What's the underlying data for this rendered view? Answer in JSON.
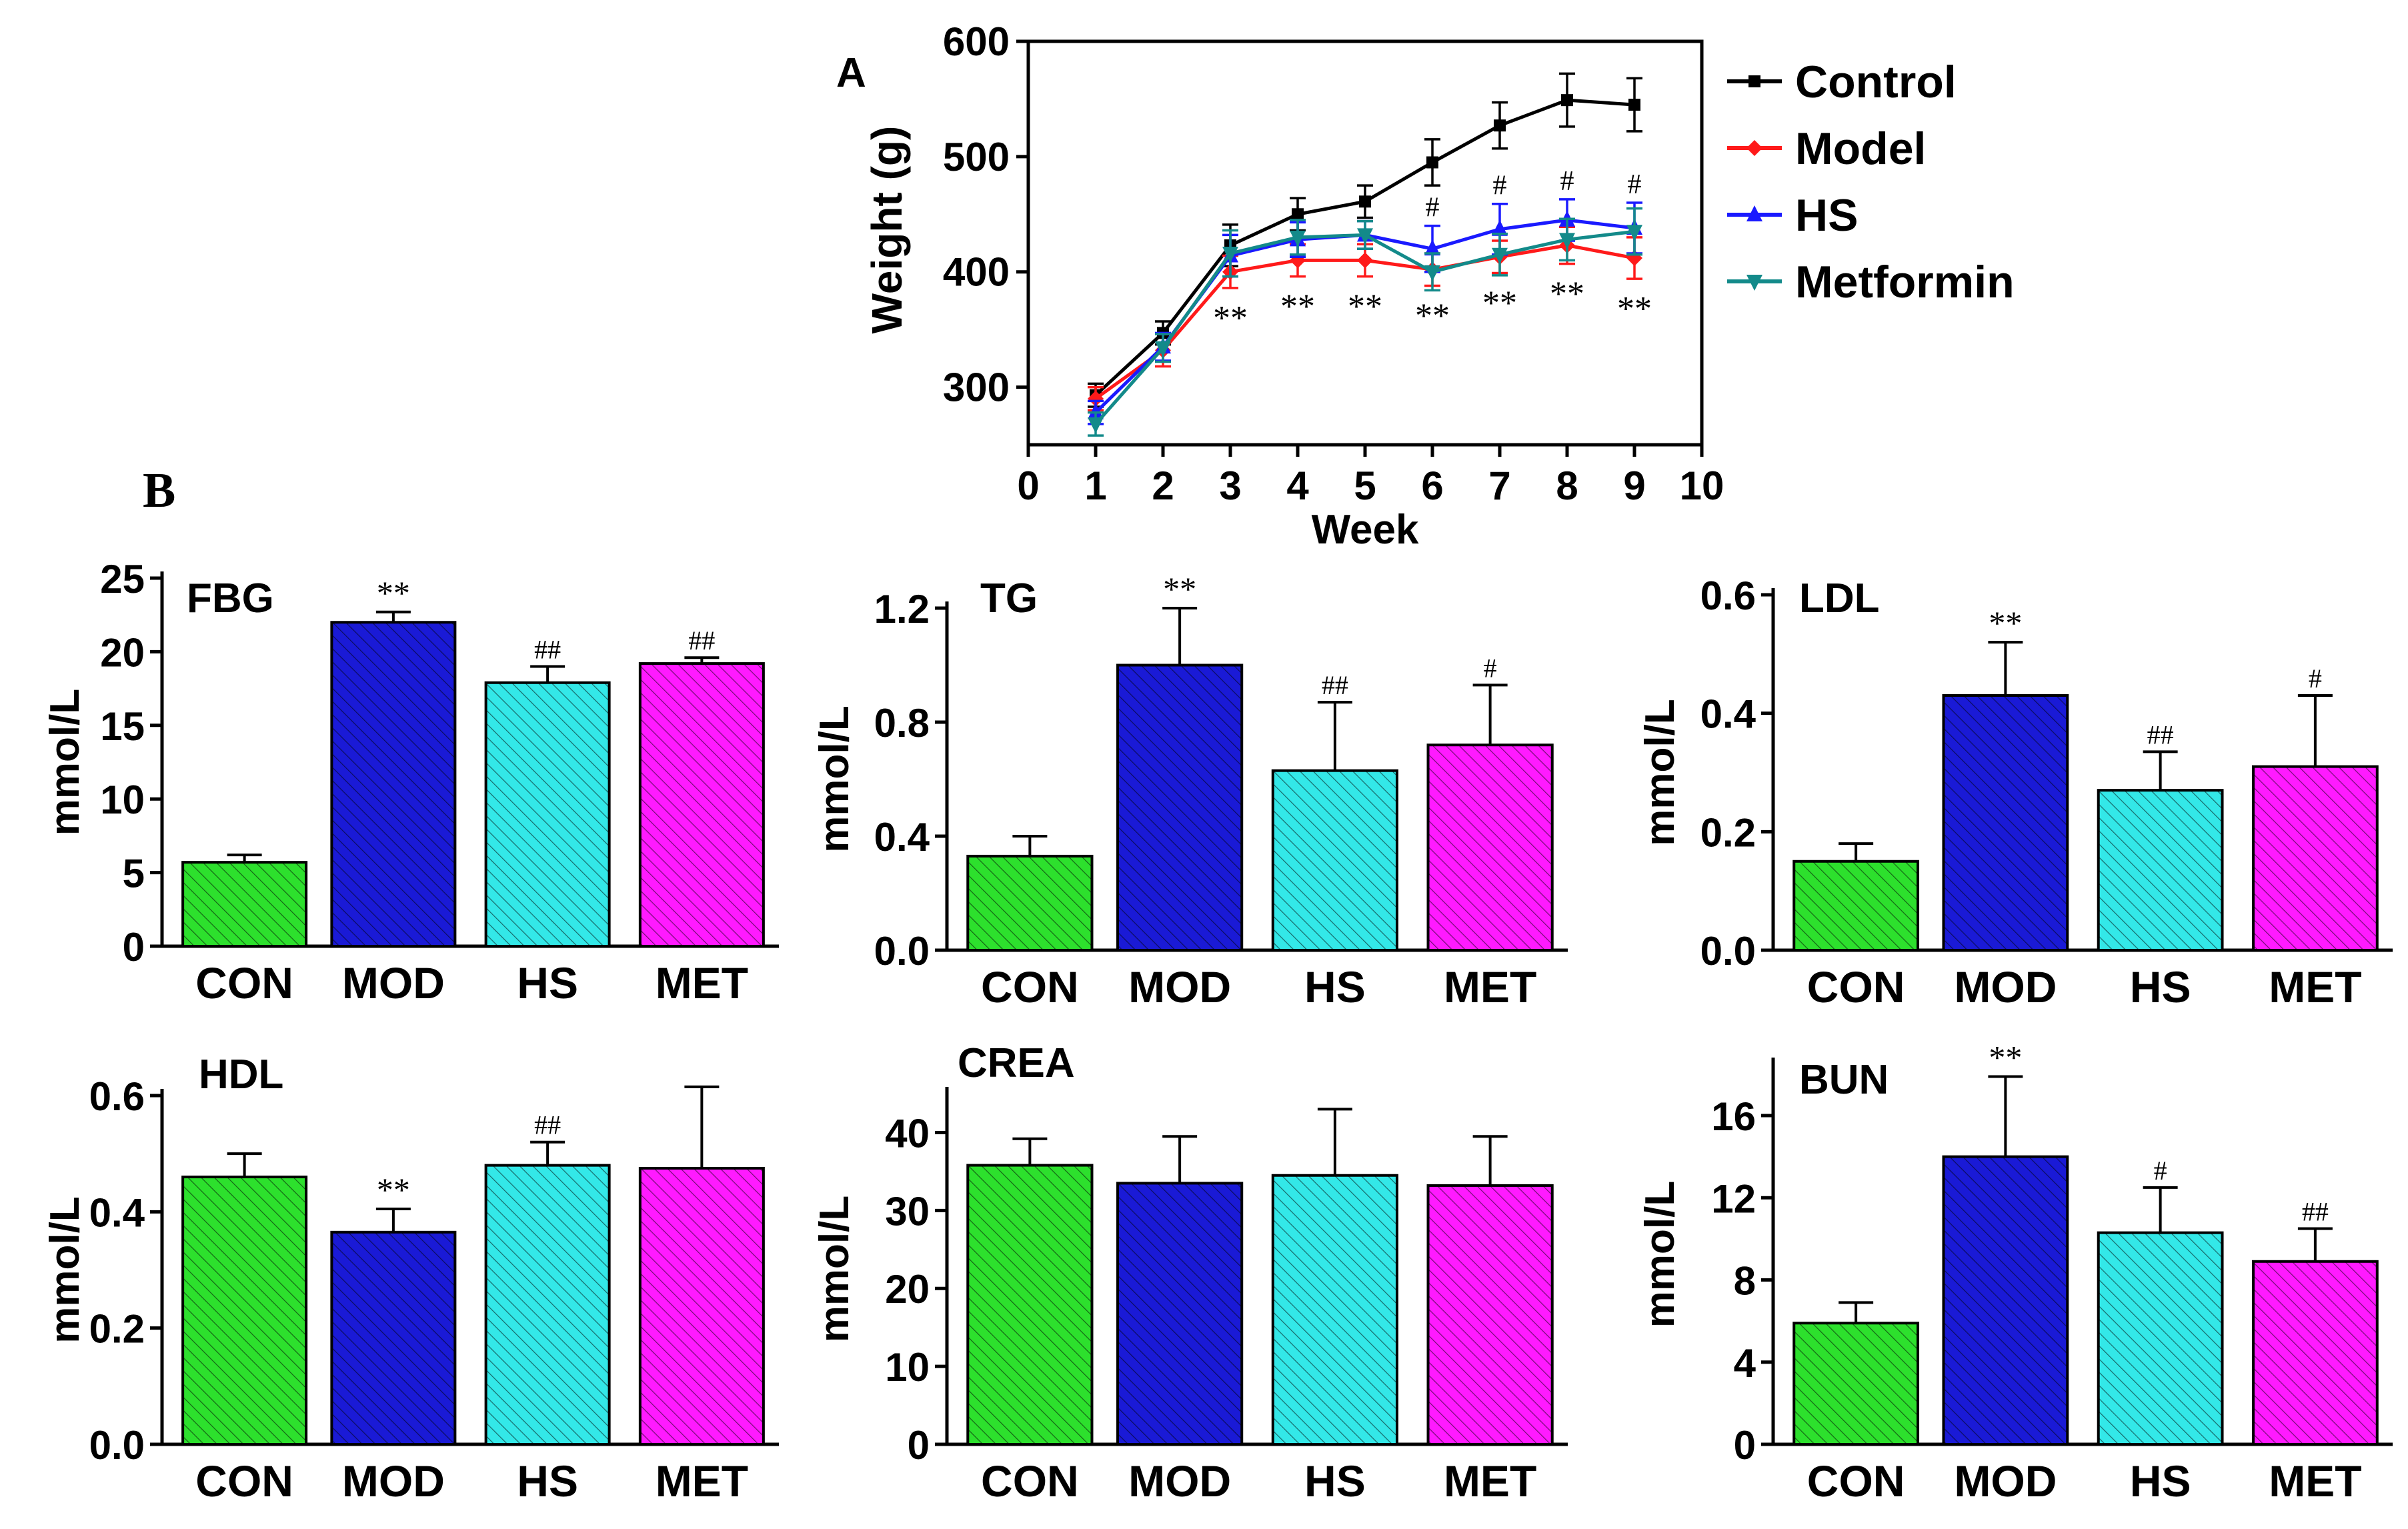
{
  "panel_labels": {
    "a": "A",
    "b": "B"
  },
  "chart_data": [
    {
      "id": "weight",
      "type": "line",
      "title": "",
      "xlabel": "Week",
      "ylabel": "Weight (g)",
      "xlim": [
        0,
        10
      ],
      "ylim": [
        250,
        600
      ],
      "x_ticks": [
        0,
        1,
        2,
        3,
        4,
        5,
        6,
        7,
        8,
        9,
        10
      ],
      "y_ticks": [
        300,
        400,
        500,
        600
      ],
      "x": [
        1,
        2,
        3,
        4,
        5,
        6,
        7,
        8,
        9
      ],
      "series": [
        {
          "name": "Control",
          "color": "#000000",
          "marker": "square",
          "values": [
            293,
            347,
            423,
            450,
            461,
            495,
            527,
            549,
            545
          ],
          "errors": [
            10,
            10,
            18,
            14,
            14,
            20,
            20,
            23,
            23
          ]
        },
        {
          "name": "Model",
          "color": "#ff1a1a",
          "marker": "diamond",
          "values": [
            290,
            332,
            400,
            410,
            410,
            402,
            413,
            423,
            412
          ],
          "errors": [
            10,
            14,
            14,
            14,
            14,
            14,
            14,
            16,
            18
          ]
        },
        {
          "name": "HS",
          "color": "#1a1aff",
          "marker": "triangle-up",
          "values": [
            278,
            335,
            414,
            428,
            432,
            420,
            437,
            445,
            438
          ],
          "errors": [
            10,
            12,
            18,
            15,
            12,
            20,
            22,
            18,
            22
          ]
        },
        {
          "name": "Metformin",
          "color": "#138a8a",
          "marker": "triangle-down",
          "values": [
            268,
            334,
            416,
            430,
            432,
            400,
            415,
            428,
            435
          ],
          "errors": [
            10,
            12,
            20,
            15,
            12,
            16,
            18,
            18,
            20
          ]
        }
      ],
      "annotations": {
        "double_star": {
          "text": "**",
          "weeks": [
            3,
            4,
            5,
            6,
            7,
            8,
            9
          ]
        },
        "hash": {
          "text": "#",
          "weeks": [
            6,
            7,
            8,
            9
          ]
        }
      },
      "legend_position": "right"
    },
    {
      "id": "fbg",
      "type": "bar",
      "title": "FBG",
      "ylabel": "mmol/L",
      "categories": [
        "CON",
        "MOD",
        "HS",
        "MET"
      ],
      "values": [
        5.7,
        22.0,
        17.9,
        19.2
      ],
      "errors": [
        0.5,
        0.7,
        1.1,
        0.4
      ],
      "marks": [
        "",
        "**",
        "##",
        "##"
      ],
      "ylim": [
        0,
        25
      ],
      "y_ticks": [
        "0",
        "5",
        "10",
        "15",
        "20",
        "25"
      ]
    },
    {
      "id": "tg",
      "type": "bar",
      "title": "TG",
      "ylabel": "mmol/L",
      "categories": [
        "CON",
        "MOD",
        "HS",
        "MET"
      ],
      "values": [
        0.33,
        1.0,
        0.63,
        0.72
      ],
      "errors": [
        0.07,
        0.2,
        0.24,
        0.21
      ],
      "marks": [
        "",
        "**",
        "##",
        "#"
      ],
      "ylim": [
        0,
        1.2
      ],
      "y_ticks": [
        "0.0",
        "0.4",
        "0.8",
        "1.2"
      ]
    },
    {
      "id": "ldl",
      "type": "bar",
      "title": "LDL",
      "ylabel": "mmol/L",
      "categories": [
        "CON",
        "MOD",
        "HS",
        "MET"
      ],
      "values": [
        0.15,
        0.43,
        0.27,
        0.31
      ],
      "errors": [
        0.03,
        0.09,
        0.065,
        0.12
      ],
      "marks": [
        "",
        "**",
        "##",
        "#"
      ],
      "ylim": [
        0,
        0.6
      ],
      "y_ticks": [
        "0.0",
        "0.2",
        "0.4",
        "0.6"
      ]
    },
    {
      "id": "hdl",
      "type": "bar",
      "title": "HDL",
      "ylabel": "mmol/L",
      "categories": [
        "CON",
        "MOD",
        "HS",
        "MET"
      ],
      "values": [
        0.46,
        0.365,
        0.48,
        0.475
      ],
      "errors": [
        0.04,
        0.04,
        0.04,
        0.14
      ],
      "marks": [
        "",
        "**",
        "##",
        ""
      ],
      "ylim": [
        0,
        0.6
      ],
      "y_ticks": [
        "0.0",
        "0.2",
        "0.4",
        "0.6"
      ]
    },
    {
      "id": "crea",
      "type": "bar",
      "title": "CREA",
      "ylabel": "mmol/L",
      "categories": [
        "CON",
        "MOD",
        "HS",
        "MET"
      ],
      "values": [
        35.8,
        33.5,
        34.5,
        33.2
      ],
      "errors": [
        3.4,
        6,
        8.5,
        6.3
      ],
      "marks": [
        "",
        "",
        "",
        ""
      ],
      "ylim": [
        0,
        45
      ],
      "y_ticks": [
        "0",
        "10",
        "20",
        "30",
        "40"
      ]
    },
    {
      "id": "bun",
      "type": "bar",
      "title": "BUN",
      "ylabel": "mmol/L",
      "categories": [
        "CON",
        "MOD",
        "HS",
        "MET"
      ],
      "values": [
        5.9,
        14.0,
        10.3,
        8.9
      ],
      "errors": [
        1.0,
        3.9,
        2.2,
        1.6
      ],
      "marks": [
        "",
        "**",
        "#",
        "##"
      ],
      "ylim": [
        0,
        18.5
      ],
      "y_ticks": [
        "0",
        "4",
        "8",
        "12",
        "16"
      ]
    }
  ],
  "colors": {
    "con": "#2de02d",
    "mod": "#1a1ad6",
    "hs": "#33e8e8",
    "met": "#ff1aff",
    "axis": "#000000"
  }
}
